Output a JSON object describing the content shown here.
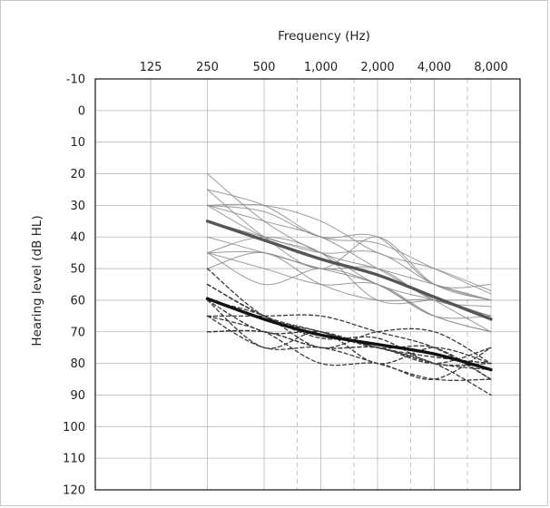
{
  "chart_data": {
    "type": "line",
    "title": "",
    "xlabel": "Frequency (Hz)",
    "ylabel": "Hearing level (dB HL)",
    "x_ticks": [
      "125",
      "250",
      "500",
      "1,000",
      "2,000",
      "4,000",
      "8,000"
    ],
    "x_minor_ticks": [
      "750",
      "1,500",
      "3,000",
      "6,000"
    ],
    "y_ticks": [
      -10,
      0,
      10,
      20,
      30,
      40,
      50,
      60,
      70,
      80,
      90,
      100,
      110,
      120
    ],
    "ylim": [
      -10,
      120
    ],
    "y_inverted": true,
    "x_scale": "octave",
    "grid": true,
    "x": [
      250,
      500,
      1000,
      2000,
      4000,
      8000
    ],
    "series": [
      {
        "group": "gray-solid",
        "values": [
          20,
          35,
          45,
          50,
          55,
          60
        ]
      },
      {
        "group": "gray-solid",
        "values": [
          25,
          30,
          40,
          42,
          50,
          58
        ]
      },
      {
        "group": "gray-solid",
        "values": [
          30,
          30,
          35,
          45,
          50,
          57
        ]
      },
      {
        "group": "gray-solid",
        "values": [
          30,
          40,
          45,
          55,
          60,
          65
        ]
      },
      {
        "group": "gray-solid",
        "values": [
          30,
          32,
          40,
          40,
          55,
          55
        ]
      },
      {
        "group": "gray-solid",
        "values": [
          25,
          40,
          50,
          40,
          55,
          60
        ]
      },
      {
        "group": "gray-solid",
        "values": [
          30,
          35,
          40,
          50,
          60,
          70
        ]
      },
      {
        "group": "gray-solid",
        "values": [
          40,
          45,
          50,
          55,
          65,
          70
        ]
      },
      {
        "group": "gray-solid",
        "values": [
          45,
          40,
          45,
          60,
          60,
          60
        ]
      },
      {
        "group": "gray-solid",
        "values": [
          45,
          50,
          55,
          55,
          65,
          70
        ]
      },
      {
        "group": "gray-solid",
        "values": [
          45,
          45,
          50,
          50,
          60,
          62
        ]
      },
      {
        "group": "gray-solid",
        "values": [
          35,
          40,
          45,
          45,
          55,
          60
        ]
      },
      {
        "group": "gray-solid",
        "values": [
          50,
          45,
          55,
          60,
          60,
          65
        ]
      },
      {
        "group": "gray-solid",
        "values": [
          45,
          55,
          50,
          55,
          65,
          65
        ]
      },
      {
        "group": "black-dashed",
        "values": [
          50,
          65,
          70,
          75,
          75,
          85
        ]
      },
      {
        "group": "black-dashed",
        "values": [
          55,
          65,
          70,
          75,
          80,
          90
        ]
      },
      {
        "group": "black-dashed",
        "values": [
          60,
          65,
          75,
          70,
          70,
          80
        ]
      },
      {
        "group": "black-dashed",
        "values": [
          65,
          75,
          75,
          80,
          85,
          85
        ]
      },
      {
        "group": "black-dashed",
        "values": [
          70,
          70,
          75,
          75,
          80,
          75
        ]
      },
      {
        "group": "black-dashed",
        "values": [
          60,
          70,
          70,
          75,
          78,
          80
        ]
      },
      {
        "group": "black-dashed",
        "values": [
          65,
          70,
          80,
          80,
          85,
          75
        ]
      },
      {
        "group": "black-dashed",
        "values": [
          60,
          75,
          70,
          80,
          75,
          80
        ]
      },
      {
        "group": "black-dashed",
        "values": [
          55,
          65,
          72,
          72,
          80,
          80
        ]
      },
      {
        "group": "black-dashed",
        "values": [
          65,
          65,
          65,
          70,
          75,
          85
        ]
      },
      {
        "group": "black-dashed",
        "values": [
          70,
          70,
          75,
          75,
          80,
          82
        ]
      },
      {
        "group": "gray-mean",
        "values": [
          35,
          41,
          47,
          52,
          59,
          66
        ]
      },
      {
        "group": "black-mean",
        "values": [
          59.5,
          66,
          71,
          74,
          77,
          82
        ]
      }
    ],
    "colors": {
      "gray_solid": "#8a8a8a",
      "black_dashed": "#3a3a3a",
      "gray_mean": "#555555",
      "black_mean": "#111111",
      "grid": "#b8b8b8",
      "axis": "#222222"
    }
  }
}
